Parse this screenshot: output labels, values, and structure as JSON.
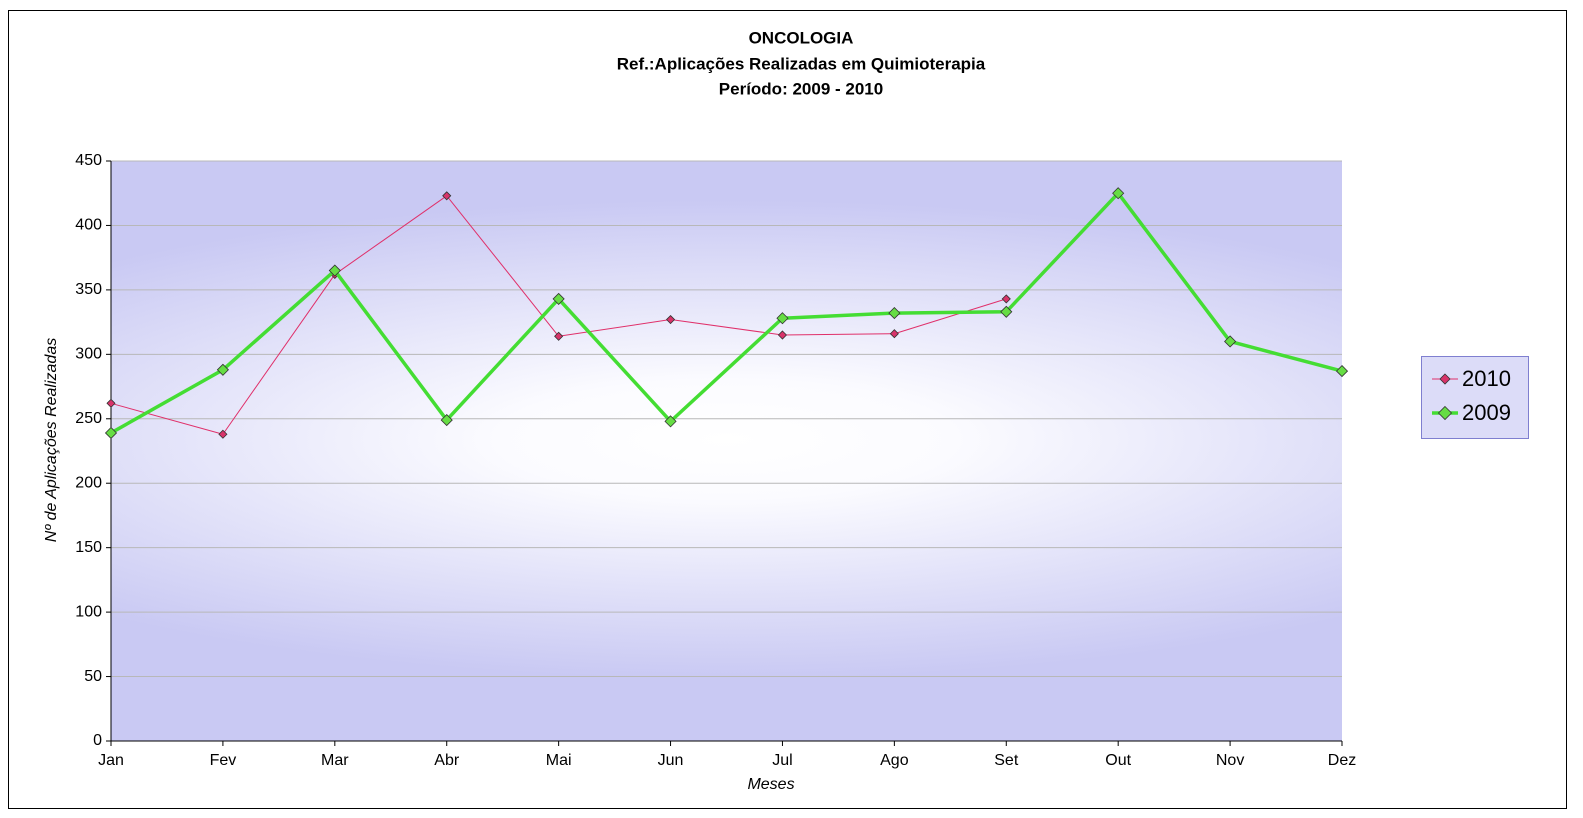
{
  "chart_data": {
    "type": "line",
    "title": "ONCOLOGIA",
    "subtitle": [
      "Ref.:Aplicações Realizadas em Quimioterapia",
      "Período: 2009 - 2010"
    ],
    "x_label": "Meses",
    "y_label": "Nº de Aplicações Realizadas",
    "categories": [
      "Jan",
      "Fev",
      "Mar",
      "Abr",
      "Mai",
      "Jun",
      "Jul",
      "Ago",
      "Set",
      "Out",
      "Nov",
      "Dez"
    ],
    "series": [
      {
        "name": "2010",
        "color": "#e0306a",
        "values": [
          262,
          238,
          362,
          423,
          314,
          327,
          315,
          316,
          343,
          null,
          null,
          null
        ]
      },
      {
        "name": "2009",
        "color": "#44dd33",
        "values": [
          239,
          288,
          365,
          249,
          343,
          248,
          328,
          332,
          333,
          425,
          310,
          287
        ]
      }
    ],
    "ylim": [
      0,
      450
    ],
    "yticks": [
      0,
      50,
      100,
      150,
      200,
      250,
      300,
      350,
      400,
      450
    ],
    "grid": true,
    "legend": "right"
  }
}
